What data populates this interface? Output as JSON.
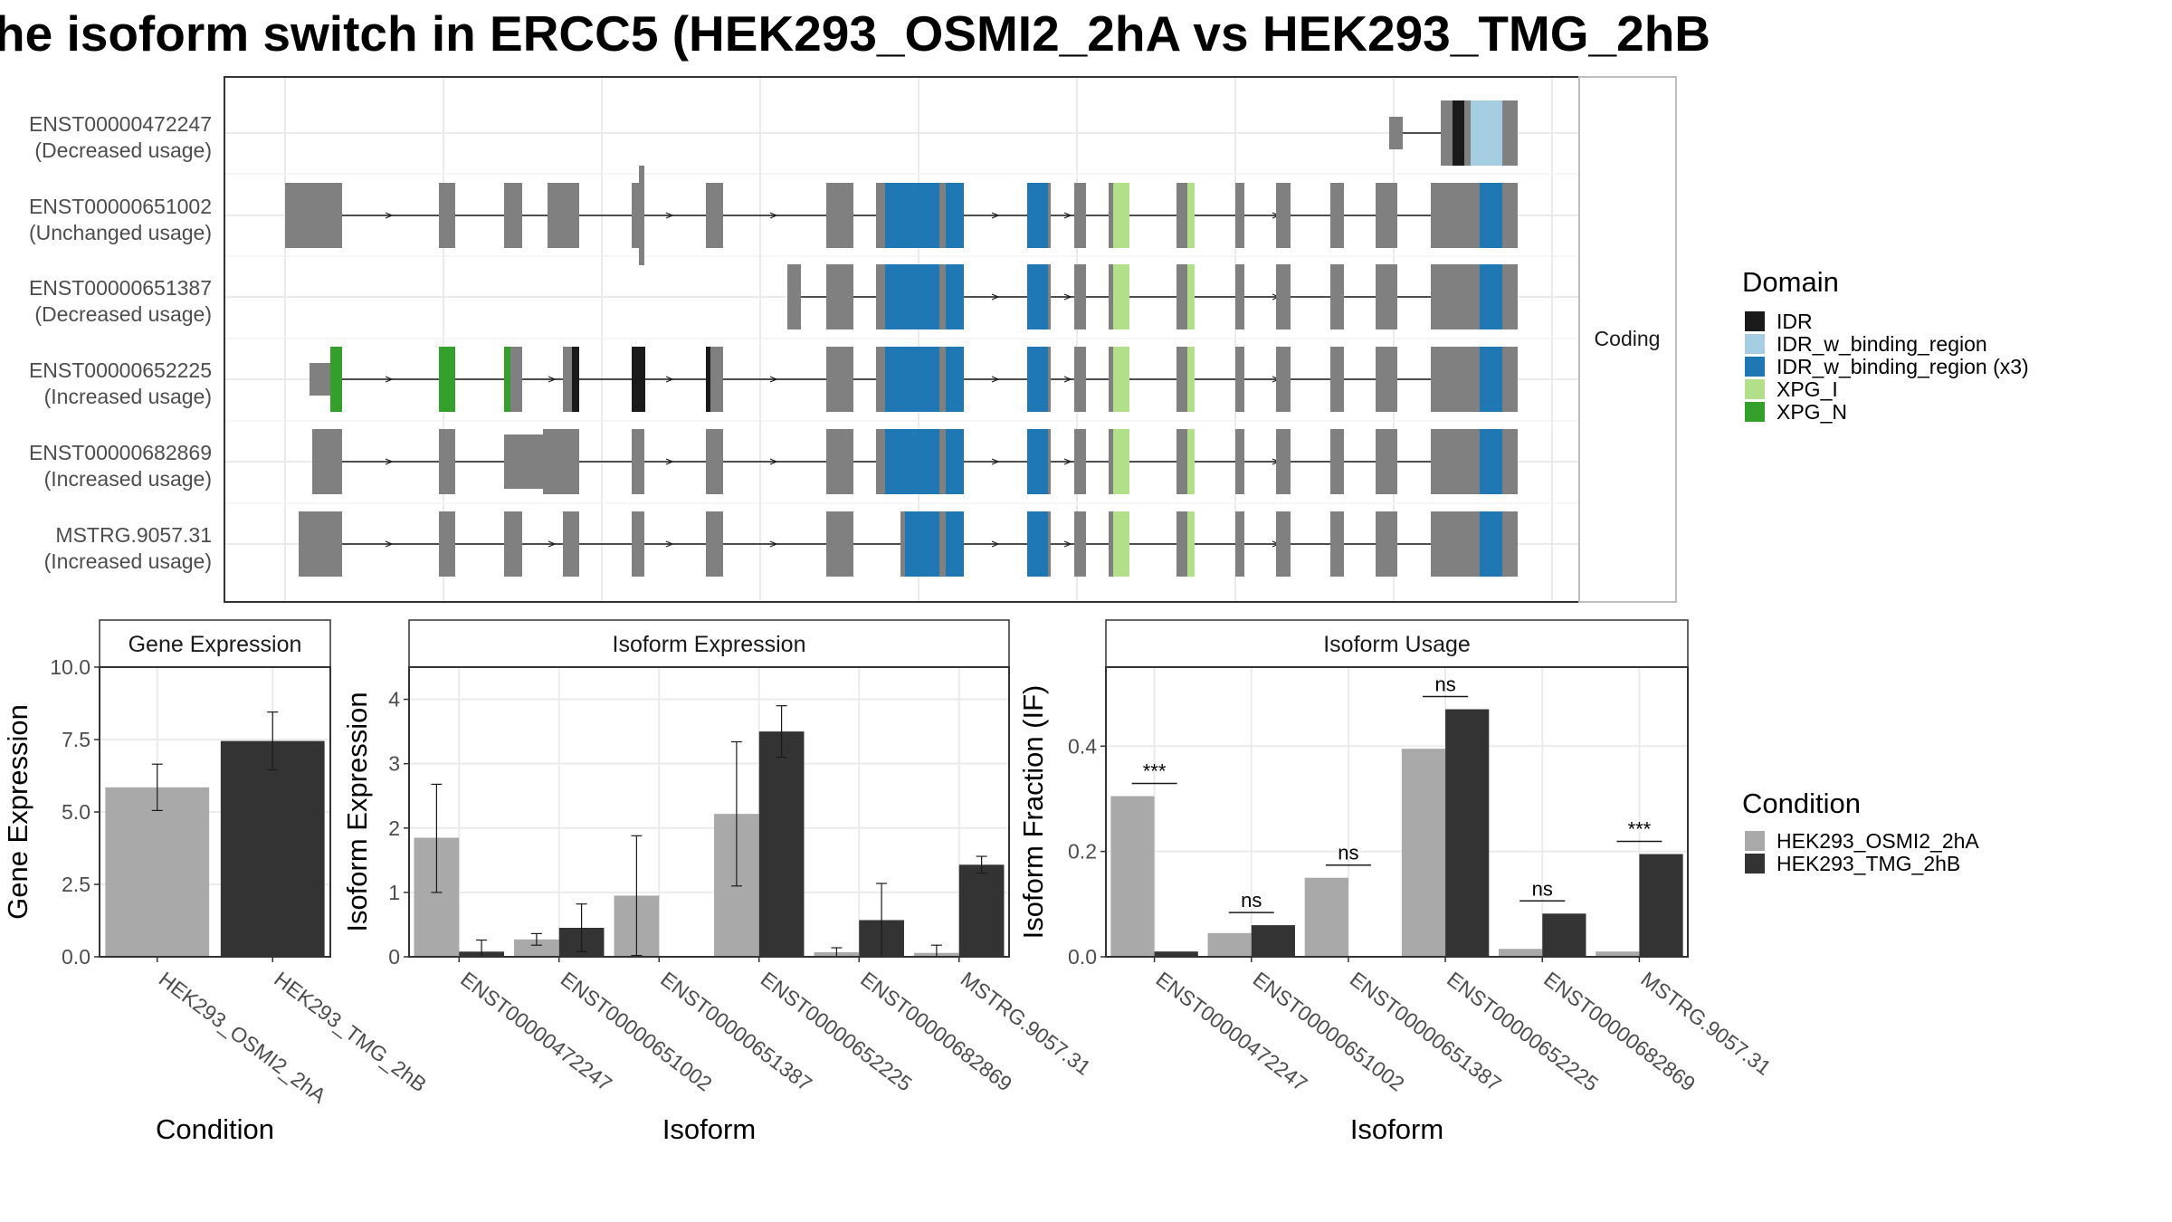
{
  "title": "he isoform switch in ERCC5 (HEK293_OSMI2_2hA vs HEK293_TMG_2hB",
  "colors": {
    "IDR": "#1a1a1a",
    "IDR_w_binding_region": "#a6cee3",
    "IDR_w_binding_region (x3)": "#1f78b4",
    "XPG_I": "#b2df8a",
    "XPG_N": "#33a02c",
    "noncoding": "#808080",
    "cond1": "#a9a9a9",
    "cond2": "#333333"
  },
  "structure": {
    "strip_label": "Coding",
    "isoforms": [
      {
        "id": "ENST00000472247",
        "usage": "(Decreased usage)"
      },
      {
        "id": "ENST00000651002",
        "usage": "(Unchanged usage)"
      },
      {
        "id": "ENST00000651387",
        "usage": "(Decreased usage)"
      },
      {
        "id": "ENST00000652225",
        "usage": "(Increased usage)"
      },
      {
        "id": "ENST00000682869",
        "usage": "(Increased usage)"
      },
      {
        "id": "MSTRG.9057.31",
        "usage": "(Increased usage)"
      }
    ]
  },
  "legend_domain": {
    "title": "Domain",
    "items": [
      "IDR",
      "IDR_w_binding_region",
      "IDR_w_binding_region (x3)",
      "XPG_I",
      "XPG_N"
    ]
  },
  "legend_condition": {
    "title": "Condition",
    "items": [
      "HEK293_OSMI2_2hA",
      "HEK293_TMG_2hB"
    ]
  },
  "chart_data": [
    {
      "type": "bar",
      "title": "Gene Expression",
      "xlabel": "Condition",
      "ylabel": "Gene Expression",
      "ylim": [
        0,
        10
      ],
      "yticks": [
        "0.0",
        "2.5",
        "5.0",
        "7.5",
        "10.0"
      ],
      "categories": [
        "HEK293_OSMI2_2hA",
        "HEK293_TMG_2hB"
      ],
      "values": [
        5.85,
        7.45
      ],
      "error_low": [
        5.05,
        6.45
      ],
      "error_high": [
        6.65,
        8.45
      ]
    },
    {
      "type": "bar",
      "title": "Isoform Expression",
      "xlabel": "Isoform",
      "ylabel": "Isoform Expression",
      "ylim": [
        0,
        4.5
      ],
      "yticks": [
        "0",
        "1",
        "2",
        "3",
        "4"
      ],
      "categories": [
        "ENST00000472247",
        "ENST00000651002",
        "ENST00000651387",
        "ENST00000652225",
        "ENST00000682869",
        "MSTRG.9057.31"
      ],
      "series": [
        {
          "name": "HEK293_OSMI2_2hA",
          "values": [
            1.85,
            0.27,
            0.95,
            2.22,
            0.07,
            0.06
          ],
          "error_low": [
            1.0,
            0.18,
            0.02,
            1.1,
            0.0,
            0.0
          ],
          "error_high": [
            2.68,
            0.36,
            1.88,
            3.34,
            0.14,
            0.18
          ]
        },
        {
          "name": "HEK293_TMG_2hB",
          "values": [
            0.08,
            0.45,
            0.0,
            3.5,
            0.57,
            1.43
          ],
          "error_low": [
            0.0,
            0.08,
            0.0,
            3.1,
            0.0,
            1.3
          ],
          "error_high": [
            0.26,
            0.82,
            0.0,
            3.9,
            1.14,
            1.56
          ]
        }
      ]
    },
    {
      "type": "bar",
      "title": "Isoform Usage",
      "xlabel": "Isoform",
      "ylabel": "Isoform Fraction (IF)",
      "ylim": [
        0,
        0.55
      ],
      "yticks": [
        "0.0",
        "0.2",
        "0.4"
      ],
      "categories": [
        "ENST00000472247",
        "ENST00000651002",
        "ENST00000651387",
        "ENST00000652225",
        "ENST00000682869",
        "MSTRG.9057.31"
      ],
      "series": [
        {
          "name": "HEK293_OSMI2_2hA",
          "values": [
            0.305,
            0.045,
            0.15,
            0.395,
            0.015,
            0.01
          ]
        },
        {
          "name": "HEK293_TMG_2hB",
          "values": [
            0.01,
            0.06,
            0.0,
            0.47,
            0.082,
            0.195
          ]
        }
      ],
      "significance": [
        "***",
        "ns",
        "ns",
        "ns",
        "ns",
        "***"
      ]
    }
  ]
}
